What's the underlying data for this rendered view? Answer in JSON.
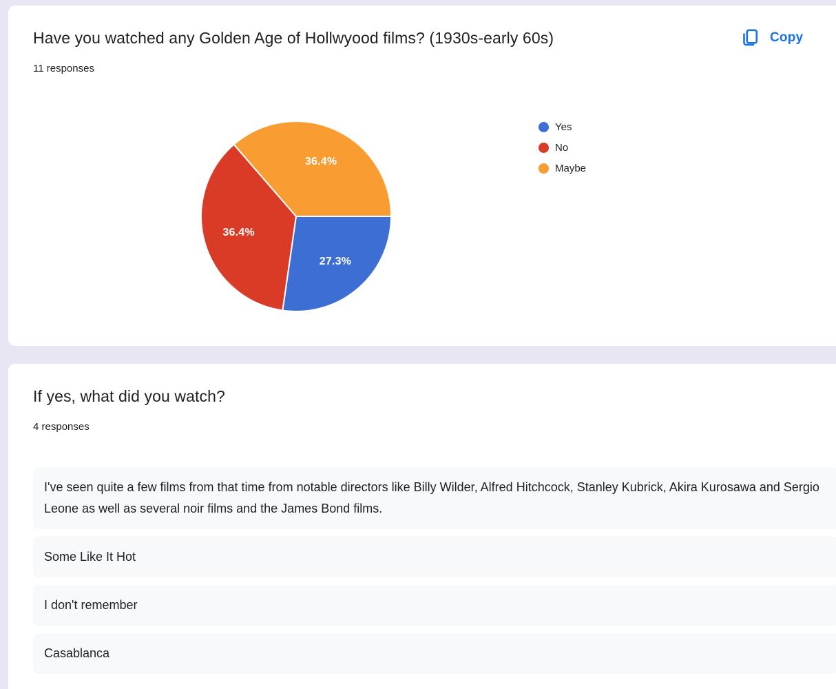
{
  "page": {
    "background_color": "#e9e6f4",
    "card_color": "#ffffff",
    "accent_blue": "#1a73e8"
  },
  "card1": {
    "title": "Have you watched any Golden Age of Hollwyood films? (1930s-early 60s)",
    "responses_count": "11 responses",
    "copy_button": {
      "label": "Copy",
      "icon": "copy-icon",
      "color": "#1a73e8"
    }
  },
  "chart_data": {
    "type": "pie",
    "title": "Have you watched any Golden Age of Hollwyood films? (1930s-early 60s)",
    "total_label": "11 responses",
    "legend_position": "right",
    "start_angle_deg_from_east_clockwise": 0,
    "slice_border_color": "#ffffff",
    "series": [
      {
        "label": "Yes",
        "percent": 27.3,
        "percent_label": "27.3%",
        "color": "#3d6ed3"
      },
      {
        "label": "No",
        "percent": 36.4,
        "percent_label": "36.4%",
        "color": "#d93b26"
      },
      {
        "label": "Maybe",
        "percent": 36.4,
        "percent_label": "36.4%",
        "color": "#f99d33"
      }
    ]
  },
  "card2": {
    "title": "If yes, what did you watch?",
    "responses_count": "4 responses",
    "responses": [
      "I've seen quite a few films from that time from notable directors like Billy Wilder, Alfred Hitchcock, Stanley Kubrick, Akira Kurosawa and Sergio Leone as well as several noir films and the James Bond films.",
      "Some Like It Hot",
      "I don't remember",
      "Casablanca"
    ]
  }
}
